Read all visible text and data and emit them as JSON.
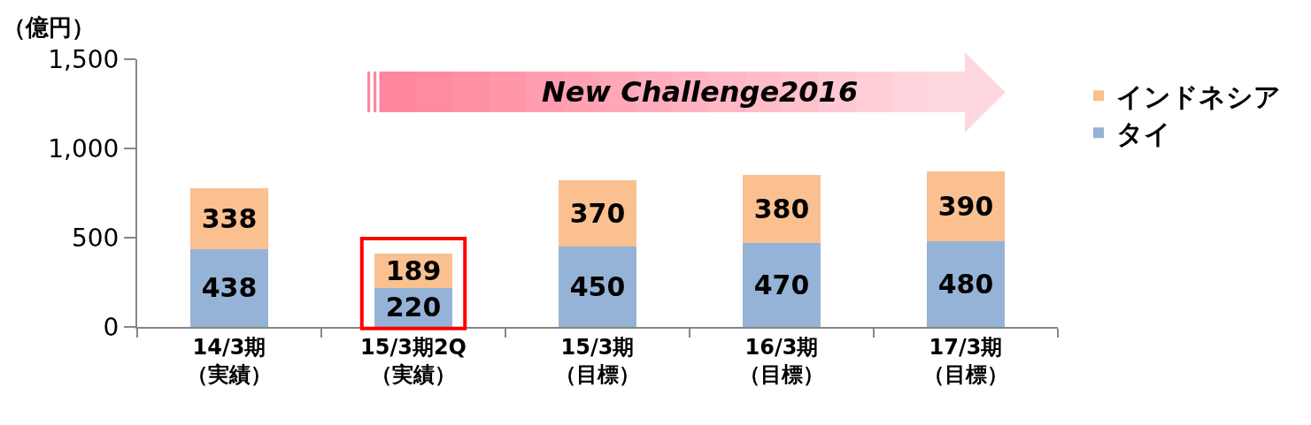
{
  "chart_data": {
    "type": "bar",
    "stacked": true,
    "ylabel": "（億円）",
    "categories": [
      "14/3期（実績）",
      "15/3期2Q（実績）",
      "15/3期（目標）",
      "16/3期（目標）",
      "17/3期（目標）"
    ],
    "series": [
      {
        "name": "タイ",
        "color": "#95b3d7",
        "values": [
          438,
          220,
          450,
          470,
          480
        ]
      },
      {
        "name": "インドネシア",
        "color": "#fac090",
        "values": [
          338,
          189,
          370,
          380,
          390
        ]
      }
    ],
    "ylim": [
      0,
      1500
    ],
    "yticks": [
      0,
      500,
      {
        "value": 1000,
        "label": "1,000"
      },
      {
        "value": 1500,
        "label": "1,500"
      }
    ],
    "data_labels": true,
    "legend": "top right",
    "annotations": [
      "New Challenge2016"
    ]
  }
}
